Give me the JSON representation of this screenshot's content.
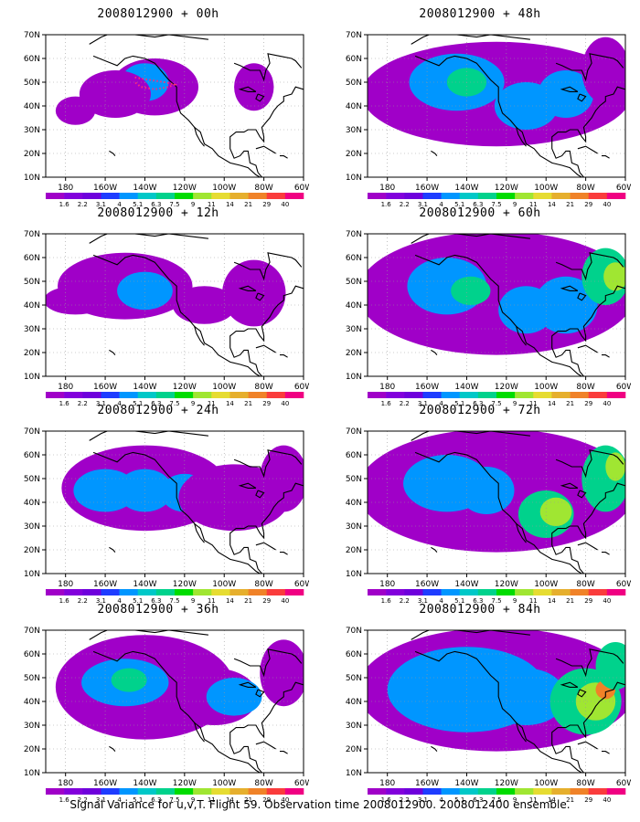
{
  "panels": [
    {
      "title": "2008012900 + 00h",
      "blobs": [
        [
          -135,
          48,
          22,
          12,
          0
        ],
        [
          -140,
          50,
          12,
          8,
          1
        ],
        [
          -155,
          45,
          18,
          10,
          0
        ],
        [
          -175,
          38,
          10,
          6,
          0
        ],
        [
          -85,
          48,
          10,
          10,
          0
        ]
      ],
      "flight_track": true
    },
    {
      "title": "2008012900 + 12h",
      "blobs": [
        [
          -150,
          48,
          34,
          14,
          0
        ],
        [
          -140,
          46,
          14,
          8,
          1
        ],
        [
          -175,
          42,
          16,
          6,
          0
        ],
        [
          -85,
          45,
          16,
          14,
          0
        ],
        [
          -110,
          40,
          16,
          8,
          0
        ]
      ]
    },
    {
      "title": "2008012900 + 24h",
      "blobs": [
        [
          -140,
          46,
          42,
          18,
          0
        ],
        [
          -160,
          45,
          16,
          9,
          1
        ],
        [
          -140,
          45,
          14,
          9,
          1
        ],
        [
          -120,
          44,
          12,
          8,
          1
        ],
        [
          -95,
          42,
          28,
          14,
          0
        ],
        [
          -70,
          50,
          12,
          14,
          0
        ]
      ]
    },
    {
      "title": "2008012900 + 36h",
      "blobs": [
        [
          -140,
          46,
          45,
          22,
          0
        ],
        [
          -150,
          48,
          22,
          10,
          1
        ],
        [
          -148,
          49,
          9,
          5,
          2
        ],
        [
          -105,
          42,
          22,
          12,
          0
        ],
        [
          -95,
          42,
          14,
          8,
          1
        ],
        [
          -70,
          52,
          12,
          14,
          0
        ]
      ]
    },
    {
      "title": "2008012900 + 48h",
      "blobs": [
        [
          -125,
          45,
          68,
          22,
          0
        ],
        [
          -145,
          50,
          24,
          12,
          1
        ],
        [
          -140,
          50,
          10,
          6,
          2
        ],
        [
          -110,
          40,
          16,
          10,
          1
        ],
        [
          -90,
          45,
          14,
          10,
          1
        ],
        [
          -70,
          55,
          12,
          14,
          0
        ]
      ]
    },
    {
      "title": "2008012900 + 60h",
      "blobs": [
        [
          -125,
          45,
          70,
          26,
          0
        ],
        [
          -150,
          48,
          20,
          12,
          1
        ],
        [
          -138,
          46,
          10,
          6,
          2
        ],
        [
          -110,
          38,
          14,
          10,
          1
        ],
        [
          -90,
          40,
          16,
          12,
          1
        ],
        [
          -70,
          52,
          12,
          12,
          2
        ],
        [
          -65,
          52,
          6,
          6,
          3
        ]
      ]
    },
    {
      "title": "2008012900 + 72h",
      "blobs": [
        [
          -125,
          45,
          70,
          26,
          0
        ],
        [
          -150,
          48,
          22,
          12,
          1
        ],
        [
          -130,
          45,
          14,
          10,
          1
        ],
        [
          -100,
          35,
          14,
          10,
          2
        ],
        [
          -95,
          36,
          8,
          6,
          3
        ],
        [
          -70,
          50,
          12,
          14,
          2
        ],
        [
          -65,
          55,
          5,
          6,
          3
        ]
      ]
    },
    {
      "title": "2008012900 + 84h",
      "blobs": [
        [
          -125,
          45,
          70,
          26,
          0
        ],
        [
          -140,
          45,
          40,
          18,
          1
        ],
        [
          -110,
          42,
          20,
          12,
          1
        ],
        [
          -80,
          40,
          18,
          14,
          2
        ],
        [
          -75,
          40,
          10,
          8,
          3
        ],
        [
          -70,
          45,
          5,
          4,
          4
        ],
        [
          -65,
          55,
          10,
          10,
          2
        ]
      ]
    }
  ],
  "axes": {
    "x_ticks": [
      "180",
      "160W",
      "140W",
      "120W",
      "100W",
      "80W",
      "60W"
    ],
    "y_ticks": [
      "10N",
      "20N",
      "30N",
      "40N",
      "50N",
      "60N",
      "70N"
    ]
  },
  "colorbar": {
    "labels": [
      "1.6",
      "2.2",
      "3.1",
      "4",
      "5.1",
      "6.3",
      "7.5",
      "9",
      "11",
      "14",
      "21",
      "29",
      "40"
    ],
    "colors": [
      "#a000c8",
      "#8200dc",
      "#6e00dc",
      "#1e3cff",
      "#0096ff",
      "#00c8c8",
      "#00d28c",
      "#00dc00",
      "#a0e632",
      "#e6dc32",
      "#e6af2d",
      "#f08228",
      "#fa3c3c",
      "#f00082"
    ]
  },
  "caption": "Signal Variance for u,v,T. Flight 59. Observation time 2008012900. 2008012400 ensemble."
}
